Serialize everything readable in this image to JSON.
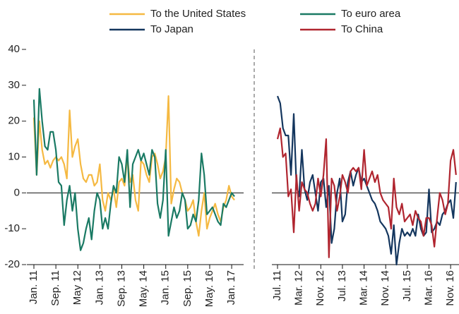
{
  "chart_data": [
    {
      "type": "line",
      "categories": [
        "Jan. 11",
        null,
        null,
        null,
        null,
        null,
        null,
        null,
        "Sep. 11",
        null,
        null,
        null,
        null,
        null,
        null,
        null,
        "May 12",
        null,
        null,
        null,
        null,
        null,
        null,
        null,
        "Jan. 13",
        null,
        null,
        null,
        null,
        null,
        null,
        null,
        "Sep. 13",
        null,
        null,
        null,
        null,
        null,
        null,
        null,
        "May. 14",
        null,
        null,
        null,
        null,
        null,
        null,
        null,
        "Jan. 15",
        null,
        null,
        null,
        null,
        null,
        null,
        null,
        "Sep. 15",
        null,
        null,
        null,
        null,
        null,
        null,
        null,
        "May. 16",
        null,
        null,
        null,
        null,
        null,
        null,
        null,
        "Jan. 17",
        null
      ],
      "series": [
        {
          "name": "To the United States",
          "color": "#f5b942",
          "values": [
            21,
            5,
            20,
            12,
            8,
            9,
            7,
            9,
            10,
            9,
            10,
            8,
            4,
            23,
            10,
            13,
            15,
            8,
            4,
            3,
            5,
            5,
            2,
            3,
            8,
            -2,
            -5,
            0,
            -2,
            1,
            -4,
            3,
            4,
            2,
            10,
            3,
            5,
            -2,
            -5,
            9,
            8,
            5,
            3,
            10,
            11,
            8,
            4,
            6,
            10,
            27,
            -3,
            1,
            4,
            3,
            0,
            -2,
            -5,
            -4,
            -2,
            -8,
            -12,
            -5,
            0,
            -10,
            -7,
            -5,
            -3,
            -6,
            -8,
            -4,
            -2,
            2,
            -1,
            -2
          ]
        },
        {
          "name": "To euro area",
          "color": "#1a7a64",
          "values": [
            26,
            5,
            29,
            20,
            13,
            12,
            17,
            17,
            12,
            3,
            2,
            -9,
            -2,
            2,
            -5,
            0,
            -10,
            -16,
            -14,
            -10,
            -7,
            -13,
            -5,
            0,
            -2,
            -10,
            -7,
            -10,
            -3,
            2,
            0,
            10,
            8,
            3,
            12,
            -4,
            8,
            10,
            12,
            9,
            11,
            8,
            5,
            12,
            10,
            -3,
            -7,
            -2,
            12,
            -12,
            -8,
            -4,
            -7,
            -5,
            0,
            -2,
            -10,
            -9,
            -6,
            -8,
            -2,
            11,
            5,
            -6,
            -5,
            -4,
            -6,
            -8,
            -9,
            -3,
            -4,
            -2,
            0,
            -1
          ]
        }
      ],
      "ylim": [
        -20,
        40
      ],
      "yticks": [
        -20,
        -10,
        0,
        10,
        20,
        30,
        40
      ]
    },
    {
      "type": "line",
      "categories": [
        "Jul. 11",
        null,
        null,
        null,
        null,
        null,
        null,
        null,
        "Mar. 12",
        null,
        null,
        null,
        null,
        null,
        null,
        null,
        "Nov. 12",
        null,
        null,
        null,
        null,
        null,
        null,
        null,
        "Jul. 13",
        null,
        null,
        null,
        null,
        null,
        null,
        null,
        "Mar. 14",
        null,
        null,
        null,
        null,
        null,
        null,
        null,
        "Nov. 14",
        null,
        null,
        null,
        null,
        null,
        null,
        null,
        "Jul. 15",
        null,
        null,
        null,
        null,
        null,
        null,
        null,
        "Mar. 16",
        null,
        null,
        null,
        null,
        null,
        null,
        null,
        "Nov. 16",
        null,
        null
      ],
      "series": [
        {
          "name": "To Japan",
          "color": "#14365e",
          "values": [
            27,
            25,
            18,
            16,
            16,
            5,
            22,
            2,
            -1,
            12,
            1,
            -2,
            3,
            5,
            0,
            -5,
            3,
            4,
            -4,
            2,
            -14,
            -10,
            0,
            4,
            -8,
            -6,
            3,
            6,
            2,
            5,
            7,
            3,
            4,
            2,
            0,
            -2,
            -3,
            -5,
            -8,
            -9,
            -10,
            -12,
            -17,
            -9,
            -20,
            -14,
            -10,
            -12,
            -11,
            -12,
            -10,
            -12,
            -6,
            -10,
            -12,
            -11,
            1,
            -11,
            -10,
            -8,
            -9,
            -6,
            -5,
            -3,
            -2,
            -7,
            3
          ]
        },
        {
          "name": "To China",
          "color": "#b0252f",
          "values": [
            15,
            18,
            10,
            11,
            -1,
            1,
            -11,
            5,
            -5,
            3,
            1,
            0,
            -3,
            -5,
            -3,
            4,
            -1,
            5,
            15,
            -18,
            4,
            2,
            -5,
            -1,
            5,
            3,
            0,
            6,
            7,
            6,
            7,
            1,
            12,
            2,
            4,
            6,
            3,
            5,
            0,
            -2,
            -3,
            -4,
            -10,
            4,
            -4,
            -6,
            -3,
            -8,
            -7,
            -6,
            -9,
            -5,
            -7,
            -8,
            -12,
            -7,
            -7,
            -9,
            -15,
            -7,
            0,
            -2,
            -6,
            -3,
            9,
            12,
            5
          ]
        }
      ],
      "ylim": [
        -20,
        40
      ]
    }
  ]
}
